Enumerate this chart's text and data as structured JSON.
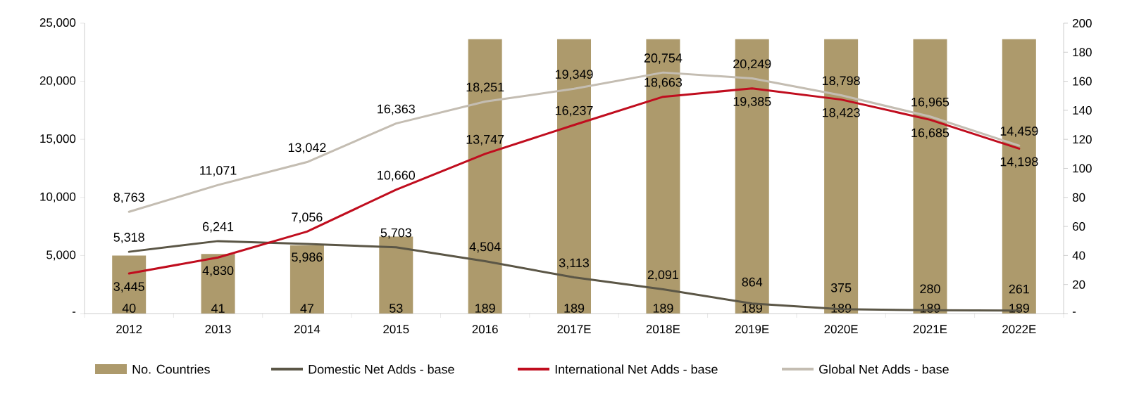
{
  "chart_data": {
    "type": "line",
    "categories": [
      "2012",
      "2013",
      "2014",
      "2015",
      "2016",
      "2017E",
      "2018E",
      "2019E",
      "2020E",
      "2021E",
      "2022E"
    ],
    "series": [
      {
        "name": "No. Countries",
        "type": "bar",
        "axis": "y2",
        "color": "#ad9a6c",
        "values": [
          40,
          41,
          47,
          53,
          189,
          189,
          189,
          189,
          189,
          189,
          189
        ],
        "value_labels": [
          "40",
          "41",
          "47",
          "53",
          "189",
          "189",
          "189",
          "189",
          "189",
          "189",
          "189"
        ]
      },
      {
        "name": "Domestic Net Adds - base",
        "color": "#5b5646",
        "values": [
          5318,
          6241,
          5986,
          5703,
          4504,
          3113,
          2091,
          864,
          375,
          280,
          261
        ],
        "value_labels": [
          "5,318",
          "6,241",
          "5,986",
          "5,703",
          "4,504",
          "3,113",
          "2,091",
          "864",
          "375",
          "280",
          "261"
        ]
      },
      {
        "name": "International Net Adds - base",
        "color": "#c00d1e",
        "values": [
          3445,
          4830,
          7056,
          10660,
          13747,
          16237,
          18663,
          19385,
          18423,
          16685,
          14198
        ],
        "value_labels": [
          "3,445",
          "4,830",
          "7,056",
          "10,660",
          "13,747",
          "16,237",
          "18,663",
          "19,385",
          "18,423",
          "16,685",
          "14,198"
        ]
      },
      {
        "name": "Global Net Adds - base",
        "color": "#c4bdb2",
        "values": [
          8763,
          11071,
          13042,
          16363,
          18251,
          19349,
          20754,
          20249,
          18798,
          16965,
          14459
        ],
        "value_labels": [
          "8,763",
          "11,071",
          "13,042",
          "16,363",
          "18,251",
          "19,349",
          "20,754",
          "20,249",
          "18,798",
          "16,965",
          "14,459"
        ]
      }
    ],
    "ylim": [
      0,
      25000
    ],
    "yticks": [
      {
        "value": 0,
        "label": "-"
      },
      {
        "value": 5000,
        "label": "5,000"
      },
      {
        "value": 10000,
        "label": "10,000"
      },
      {
        "value": 15000,
        "label": "15,000"
      },
      {
        "value": 20000,
        "label": "20,000"
      },
      {
        "value": 25000,
        "label": "25,000"
      }
    ],
    "y2lim": [
      0,
      200
    ],
    "y2ticks": [
      {
        "value": 0,
        "label": "-"
      },
      20,
      40,
      60,
      80,
      100,
      120,
      140,
      160,
      180,
      200
    ],
    "legend": "bottom",
    "marker": "none",
    "line_style": "solid"
  }
}
